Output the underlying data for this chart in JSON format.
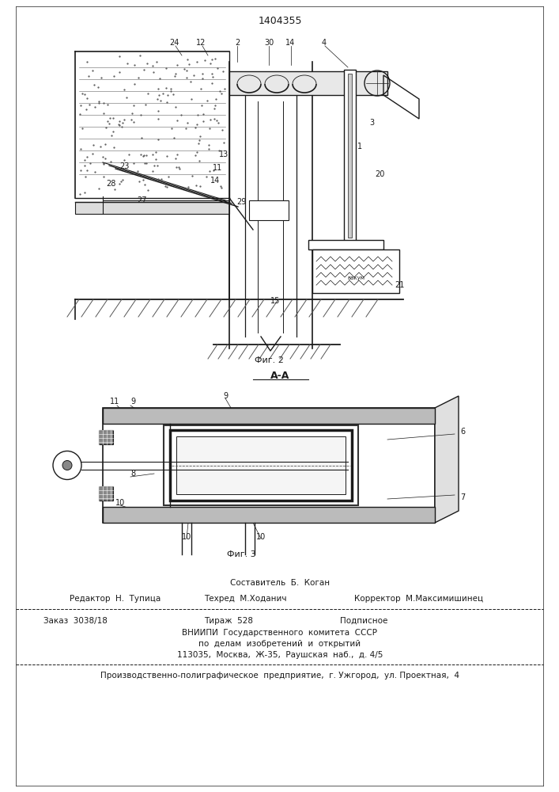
{
  "patent_number": "1404355",
  "background_color": "#ffffff",
  "line_color": "#1a1a1a",
  "fig_width": 7.07,
  "fig_height": 10.0,
  "footer": {
    "compiler": "Составитель  Б.  Коган",
    "editor": "Редактор  Н.  Тупица",
    "techred": "Техред  М.Ходанич",
    "corrector": "Корректор  М.Максимишинец",
    "order": "Заказ  3038/18",
    "tirazh": "Тираж  528",
    "podpisnoe": "Подписное",
    "vniiipi_line1": "ВНИИПИ  Государственного  комитета  СССР",
    "vniiipi_line2": "по  делам  изобретений  и  открытий",
    "vniiipi_line3": "113035,  Москва,  Ж-35,  Раушская  наб.,  д. 4/5",
    "production": "Производственно-полиграфическое  предприятие,  г. Ужгород,  ул. Проектная,  4"
  },
  "fig2_caption": "Фиг. 2",
  "fig3_caption": "Фиг. 3",
  "section_label": "А-А"
}
